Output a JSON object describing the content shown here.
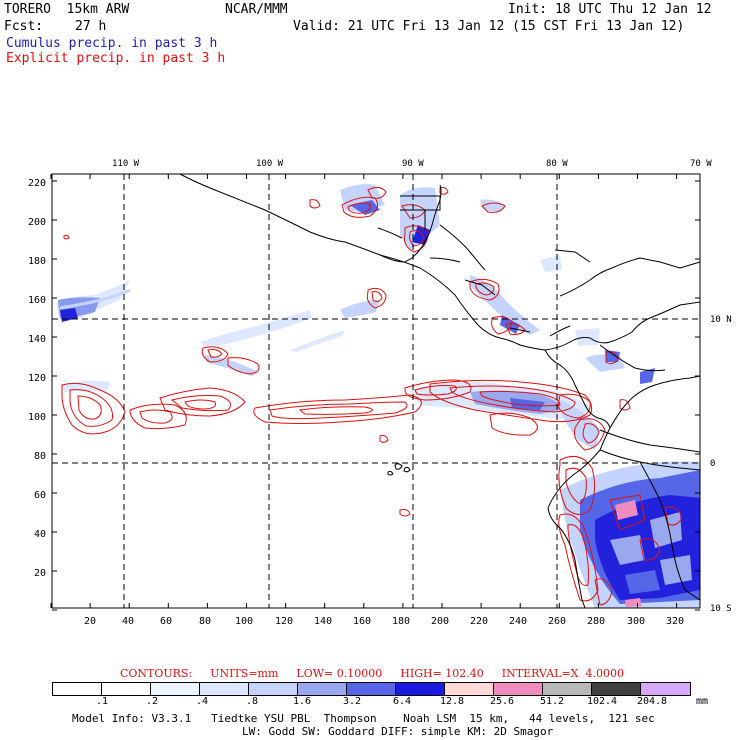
{
  "header": {
    "model": "TORERO  15km ARW",
    "center": "NCAR/MMM",
    "init": "Init: 18 UTC Thu 12 Jan 12",
    "fcst_label": "Fcst:",
    "fcst_value": "27 h",
    "valid": "Valid: 21 UTC Fri 13 Jan 12 (15 CST Fri 13 Jan 12)",
    "legend_cumulus": "Cumulus precip. in past 3 h",
    "legend_explicit": "Explicit precip. in past 3 h"
  },
  "map": {
    "top_lon_labels": [
      "110 W",
      "100 W",
      "90 W",
      "80 W",
      "70 W"
    ],
    "right_lat_labels": [
      "10 N",
      "0",
      "10 S"
    ],
    "y_ticks": [
      "220",
      "200",
      "180",
      "160",
      "140",
      "120",
      "100",
      "80",
      "60",
      "40",
      "20"
    ],
    "x_ticks": [
      "20",
      "40",
      "60",
      "80",
      "100",
      "120",
      "140",
      "160",
      "180",
      "200",
      "220",
      "240",
      "260",
      "280",
      "300",
      "320"
    ],
    "colors": {
      "land": "#000000",
      "grid": "#000000",
      "contour": "#dd1111",
      "shade_light": "#dde8ff",
      "shade_mid": "#8899ee",
      "shade_dark": "#2222dd"
    }
  },
  "contours": {
    "label": "CONTOURS:",
    "units": "UNITS=mm",
    "low": "LOW= 0.10000",
    "high": "HIGH= 102.40",
    "interval": "INTERVAL=X  4.0000"
  },
  "colorbar": {
    "labels": [
      ".1",
      ".2",
      ".4",
      ".8",
      "1.6",
      "3.2",
      "6.4",
      "12.8",
      "25.6",
      "51.2",
      "102.4",
      "204.8"
    ],
    "unit": "mm",
    "colors": [
      "#ffffff",
      "#ffffff",
      "#eef4ff",
      "#dde8ff",
      "#c4d4ff",
      "#9aa8f0",
      "#5566e6",
      "#1a1ae0",
      "#ffd8d8",
      "#f08cc0",
      "#b8b8b8",
      "#404040",
      "#d8a8f8"
    ]
  },
  "model_info": {
    "line1": "Model Info: V3.3.1   Tiedtke YSU PBL  Thompson    Noah LSM  15 km,   44 levels,  121 sec",
    "line2": "LW: Godd SW: Goddard DIFF: simple KM: 2D Smagor"
  }
}
